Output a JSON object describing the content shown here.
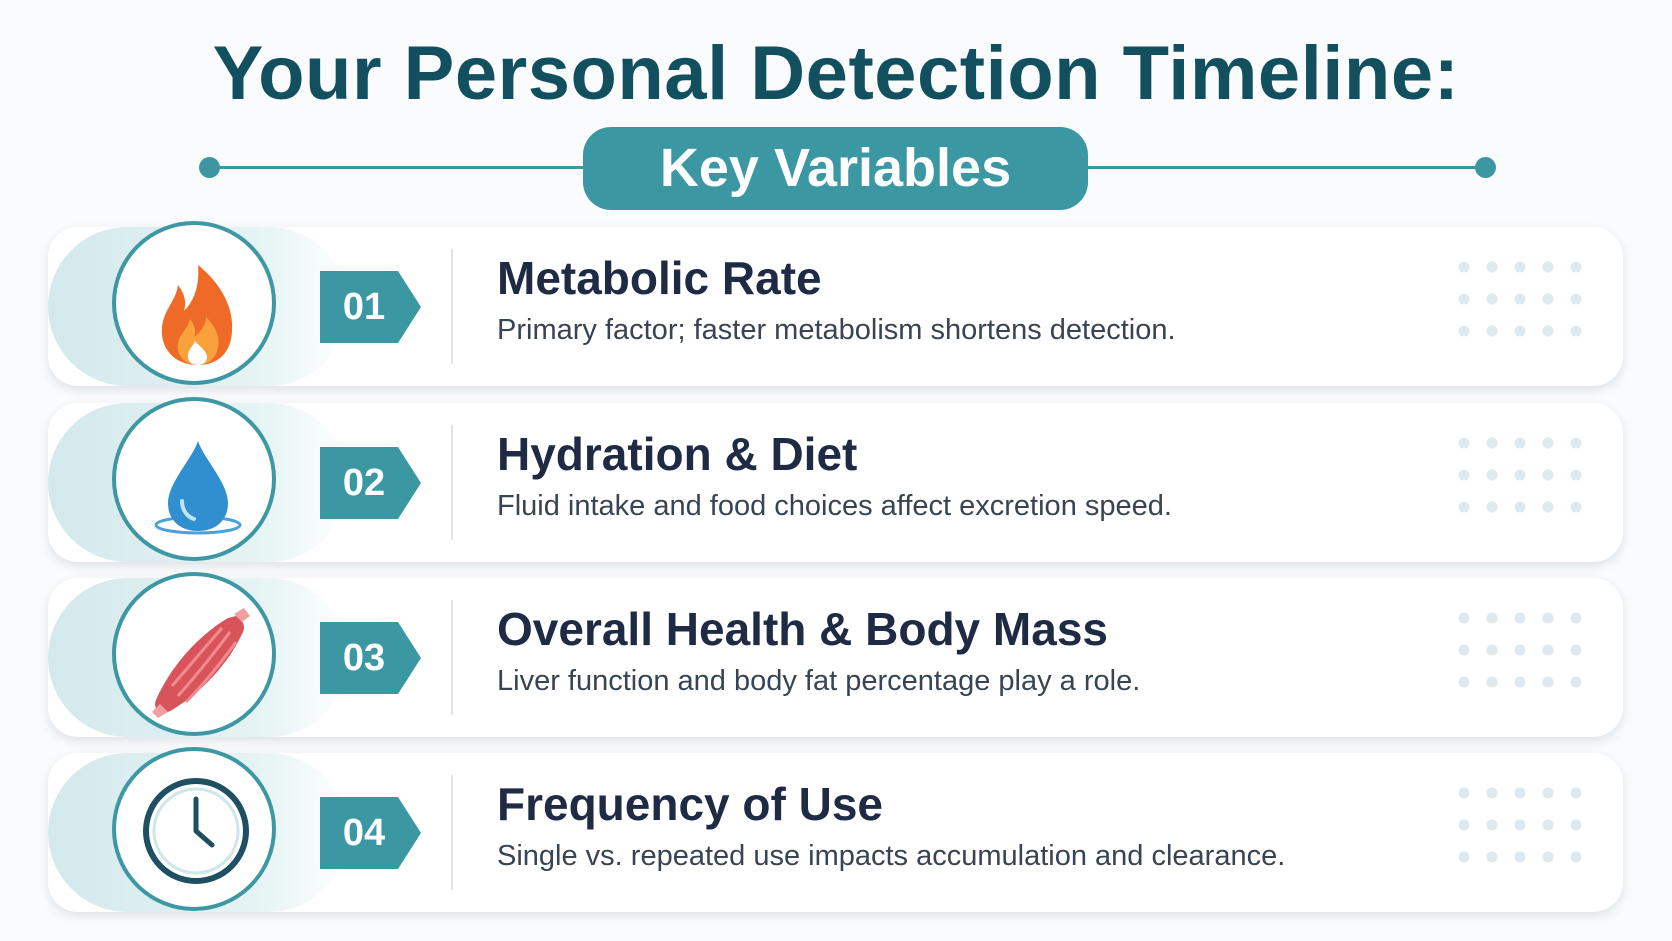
{
  "header": {
    "title": "Your Personal Detection Timeline:",
    "subtitle": "Key Variables"
  },
  "items": [
    {
      "number": "01",
      "title": "Metabolic Rate",
      "description": "Primary factor; faster metabolism shortens detection."
    },
    {
      "number": "02",
      "title": "Hydration & Diet",
      "description": "Fluid intake and food choices affect excretion speed."
    },
    {
      "number": "03",
      "title": "Overall Health & Body Mass",
      "description": "Liver function and body fat percentage play a role."
    },
    {
      "number": "04",
      "title": "Frequency of Use",
      "description": "Single vs. repeated use impacts accumulation and clearance."
    }
  ]
}
